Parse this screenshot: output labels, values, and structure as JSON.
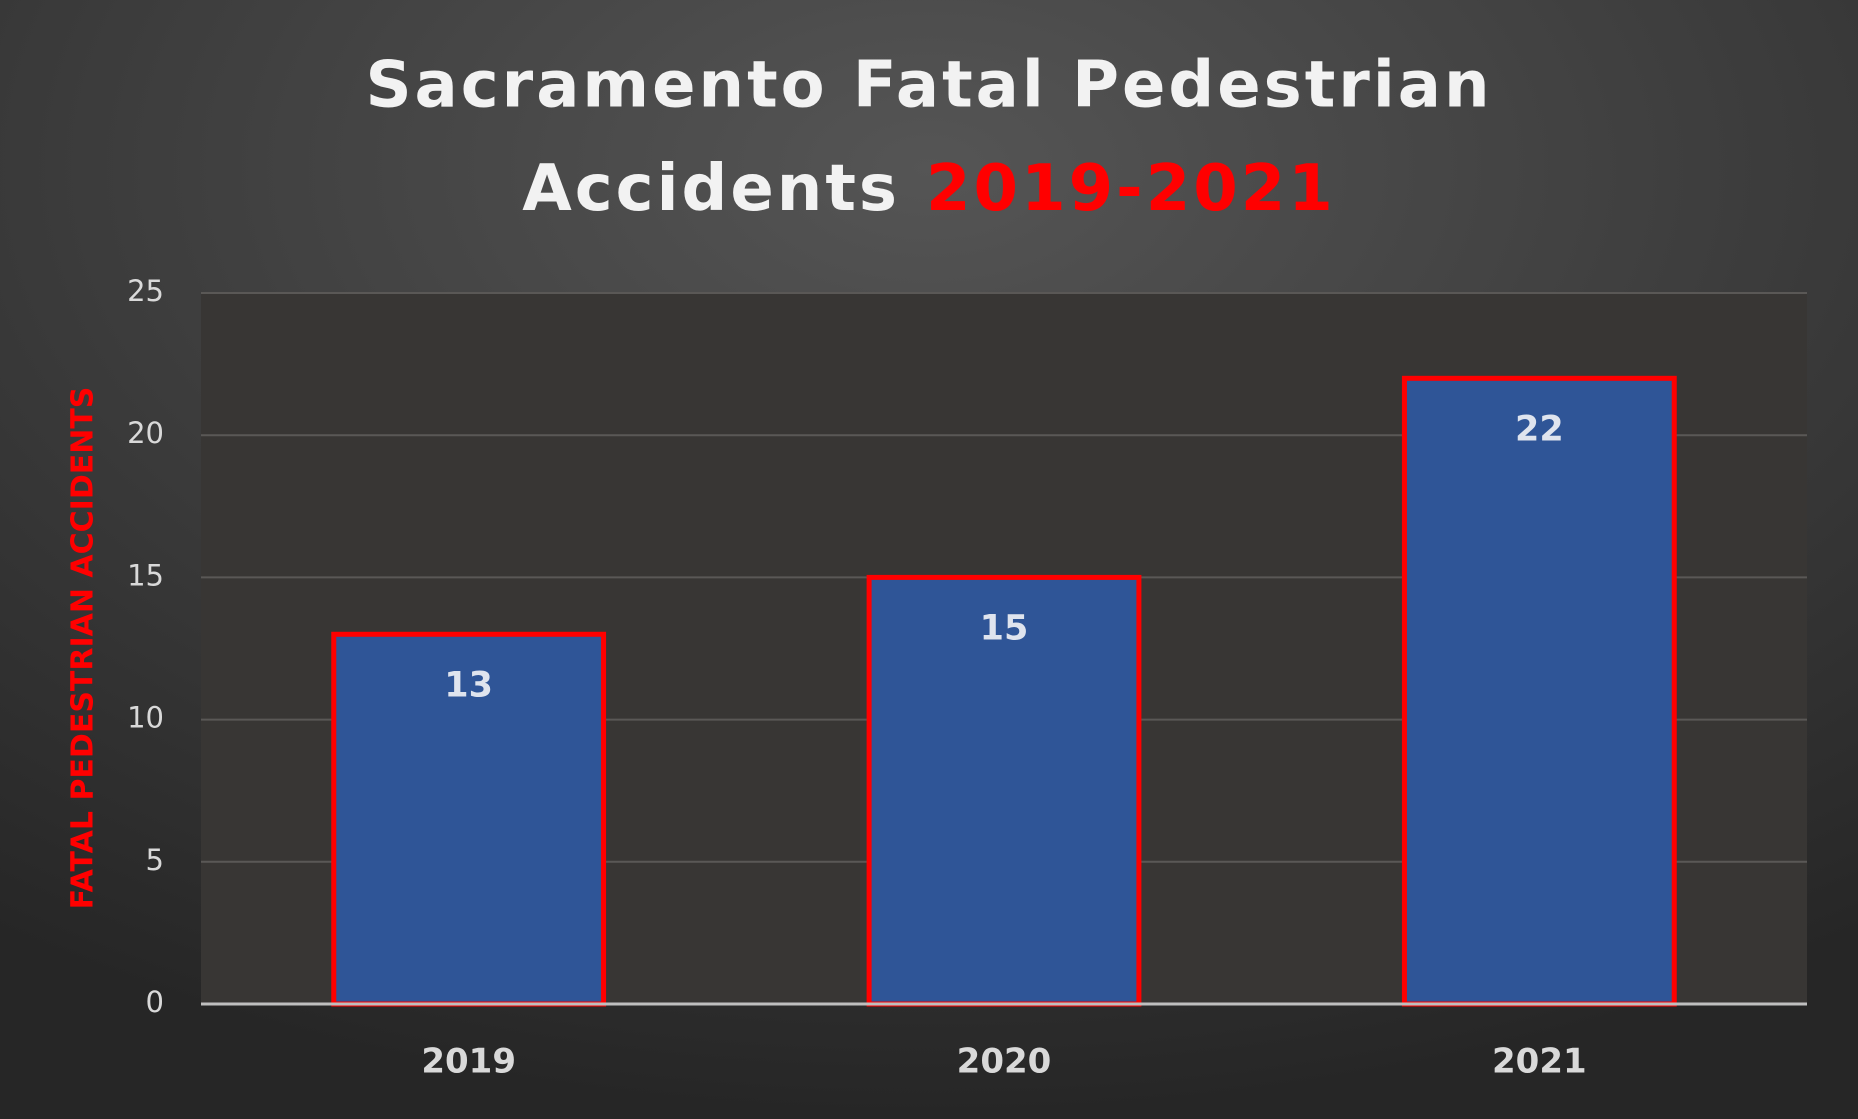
{
  "chart_data": {
    "type": "bar",
    "title": [
      "Sacramento Fatal Pedestrian",
      "Accidents"
    ],
    "title_years": "2019-2021",
    "y_label": "FATAL PEDESTRIAN ACCIDENTS",
    "categories": [
      "2019",
      "2020",
      "2021"
    ],
    "values": [
      13,
      15,
      22
    ],
    "color": "#2f5597",
    "edge_color": "#ff0000",
    "ylim": [
      0,
      25
    ],
    "yticks": [
      0,
      5,
      10,
      15,
      20,
      25
    ],
    "grid": true
  }
}
